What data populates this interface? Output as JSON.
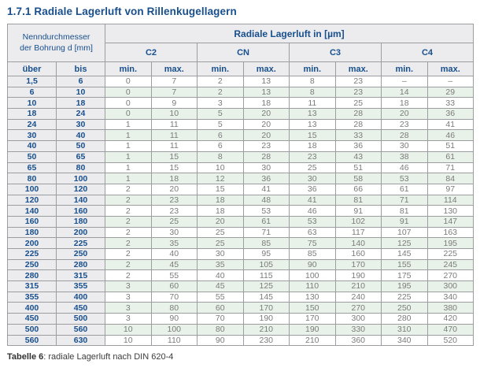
{
  "page": {
    "title": "1.7.1 Radiale Lagerluft von Rillenkugellagern"
  },
  "table": {
    "header": {
      "bore_label_line1": "Nenndurchmesser",
      "bore_label_line2": "der Bohrung d [mm]",
      "clearance_label": "Radiale Lagerluft in [µm]",
      "groups": [
        "C2",
        "CN",
        "C3",
        "C4"
      ],
      "col_uber": "über",
      "col_bis": "bis",
      "min_label": "min.",
      "max_label": "max."
    },
    "rows": [
      {
        "uber": "1,5",
        "bis": "6",
        "values": [
          "0",
          "7",
          "2",
          "13",
          "8",
          "23",
          "–",
          "–"
        ]
      },
      {
        "uber": "6",
        "bis": "10",
        "values": [
          "0",
          "7",
          "2",
          "13",
          "8",
          "23",
          "14",
          "29"
        ]
      },
      {
        "uber": "10",
        "bis": "18",
        "values": [
          "0",
          "9",
          "3",
          "18",
          "11",
          "25",
          "18",
          "33"
        ]
      },
      {
        "uber": "18",
        "bis": "24",
        "values": [
          "0",
          "10",
          "5",
          "20",
          "13",
          "28",
          "20",
          "36"
        ]
      },
      {
        "uber": "24",
        "bis": "30",
        "values": [
          "1",
          "11",
          "5",
          "20",
          "13",
          "28",
          "23",
          "41"
        ]
      },
      {
        "uber": "30",
        "bis": "40",
        "values": [
          "1",
          "11",
          "6",
          "20",
          "15",
          "33",
          "28",
          "46"
        ]
      },
      {
        "uber": "40",
        "bis": "50",
        "values": [
          "1",
          "11",
          "6",
          "23",
          "18",
          "36",
          "30",
          "51"
        ]
      },
      {
        "uber": "50",
        "bis": "65",
        "values": [
          "1",
          "15",
          "8",
          "28",
          "23",
          "43",
          "38",
          "61"
        ]
      },
      {
        "uber": "65",
        "bis": "80",
        "values": [
          "1",
          "15",
          "10",
          "30",
          "25",
          "51",
          "46",
          "71"
        ]
      },
      {
        "uber": "80",
        "bis": "100",
        "values": [
          "1",
          "18",
          "12",
          "36",
          "30",
          "58",
          "53",
          "84"
        ]
      },
      {
        "uber": "100",
        "bis": "120",
        "values": [
          "2",
          "20",
          "15",
          "41",
          "36",
          "66",
          "61",
          "97"
        ]
      },
      {
        "uber": "120",
        "bis": "140",
        "values": [
          "2",
          "23",
          "18",
          "48",
          "41",
          "81",
          "71",
          "114"
        ]
      },
      {
        "uber": "140",
        "bis": "160",
        "values": [
          "2",
          "23",
          "18",
          "53",
          "46",
          "91",
          "81",
          "130"
        ]
      },
      {
        "uber": "160",
        "bis": "180",
        "values": [
          "2",
          "25",
          "20",
          "61",
          "53",
          "102",
          "91",
          "147"
        ]
      },
      {
        "uber": "180",
        "bis": "200",
        "values": [
          "2",
          "30",
          "25",
          "71",
          "63",
          "117",
          "107",
          "163"
        ]
      },
      {
        "uber": "200",
        "bis": "225",
        "values": [
          "2",
          "35",
          "25",
          "85",
          "75",
          "140",
          "125",
          "195"
        ]
      },
      {
        "uber": "225",
        "bis": "250",
        "values": [
          "2",
          "40",
          "30",
          "95",
          "85",
          "160",
          "145",
          "225"
        ]
      },
      {
        "uber": "250",
        "bis": "280",
        "values": [
          "2",
          "45",
          "35",
          "105",
          "90",
          "170",
          "155",
          "245"
        ]
      },
      {
        "uber": "280",
        "bis": "315",
        "values": [
          "2",
          "55",
          "40",
          "115",
          "100",
          "190",
          "175",
          "270"
        ]
      },
      {
        "uber": "315",
        "bis": "355",
        "values": [
          "3",
          "60",
          "45",
          "125",
          "110",
          "210",
          "195",
          "300"
        ]
      },
      {
        "uber": "355",
        "bis": "400",
        "values": [
          "3",
          "70",
          "55",
          "145",
          "130",
          "240",
          "225",
          "340"
        ]
      },
      {
        "uber": "400",
        "bis": "450",
        "values": [
          "3",
          "80",
          "60",
          "170",
          "150",
          "270",
          "250",
          "380"
        ]
      },
      {
        "uber": "450",
        "bis": "500",
        "values": [
          "3",
          "90",
          "70",
          "190",
          "170",
          "300",
          "280",
          "420"
        ]
      },
      {
        "uber": "500",
        "bis": "560",
        "values": [
          "10",
          "100",
          "80",
          "210",
          "190",
          "330",
          "310",
          "470"
        ]
      },
      {
        "uber": "560",
        "bis": "630",
        "values": [
          "10",
          "110",
          "90",
          "230",
          "210",
          "360",
          "340",
          "520"
        ]
      }
    ]
  },
  "caption": {
    "label": "Tabelle 6",
    "text": ": radiale Lagerluft nach DIN 620-4"
  },
  "colors": {
    "accent": "#184f8e",
    "stripe": "#e8f2e9",
    "header_bg": "#ececee",
    "value_text": "#7b7b7b",
    "border": "#9c9da1",
    "caption_text": "#3c3c3c"
  }
}
